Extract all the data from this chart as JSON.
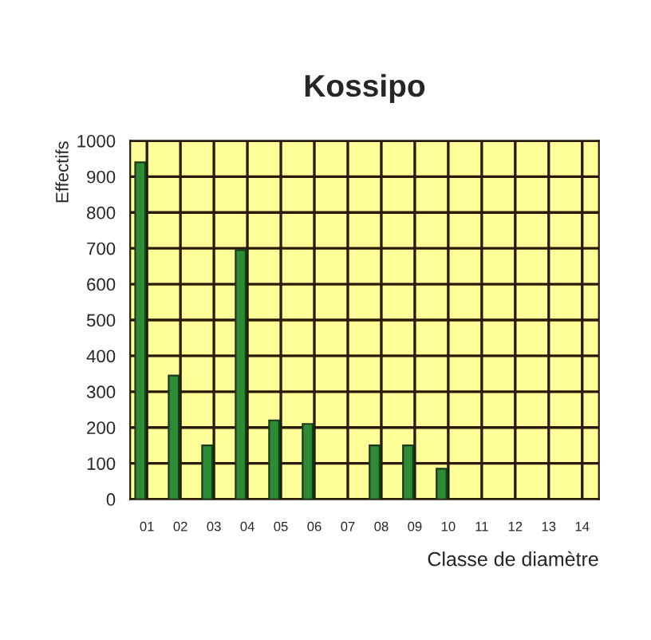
{
  "chart_data": {
    "type": "bar",
    "title": "Kossipo",
    "xlabel": "Classe de diamètre",
    "ylabel": "Effectifs",
    "categories": [
      "01",
      "02",
      "03",
      "04",
      "05",
      "06",
      "07",
      "08",
      "09",
      "10",
      "11",
      "12",
      "13",
      "14"
    ],
    "values": [
      940,
      345,
      150,
      695,
      220,
      210,
      null,
      150,
      150,
      85,
      null,
      null,
      null,
      null
    ],
    "color": "#2e8b35",
    "ylim": [
      0,
      1000
    ],
    "yticks": [
      0,
      100,
      200,
      300,
      400,
      500,
      600,
      700,
      800,
      900,
      1000
    ],
    "grid": true
  }
}
